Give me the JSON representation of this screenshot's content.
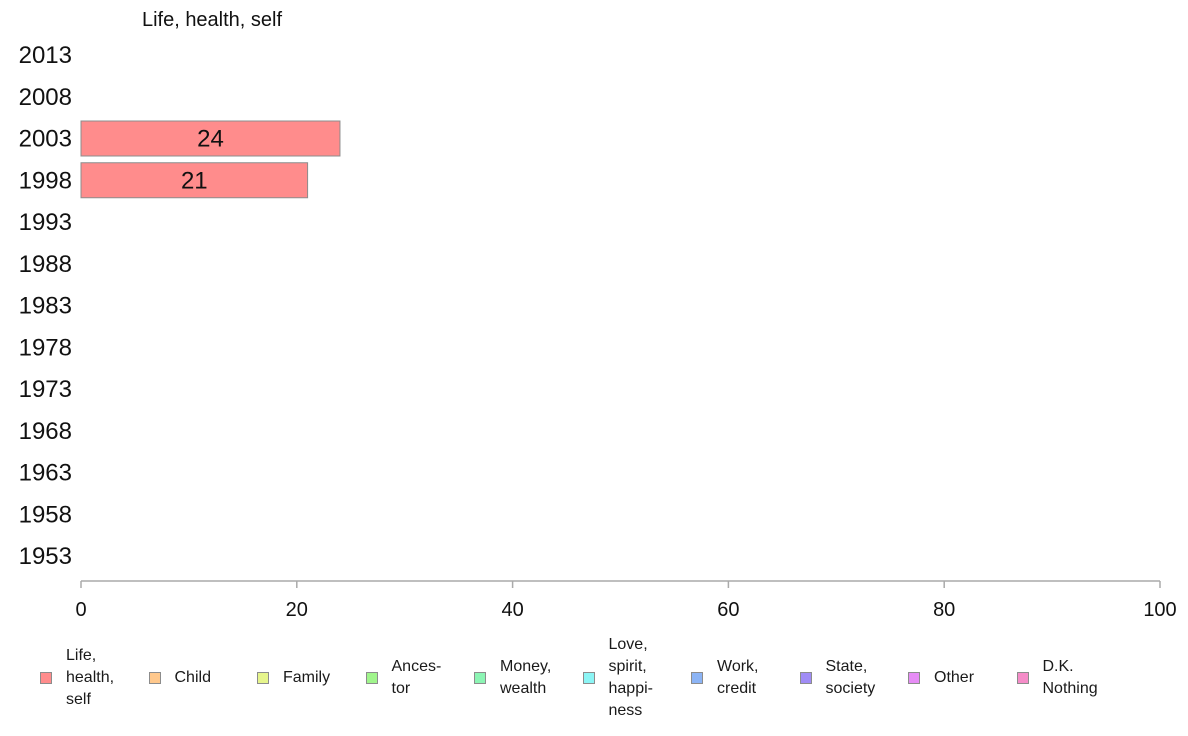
{
  "chart_data": {
    "type": "bar",
    "orientation": "horizontal",
    "title": "Life, health, self",
    "categories": [
      "2013",
      "2008",
      "2003",
      "1998",
      "1993",
      "1988",
      "1983",
      "1978",
      "1973",
      "1968",
      "1963",
      "1958",
      "1953"
    ],
    "series": [
      {
        "name": "Life, health, self",
        "color": "#ff8c8c",
        "values": [
          null,
          null,
          24,
          21,
          null,
          null,
          null,
          null,
          null,
          null,
          null,
          null,
          null
        ]
      }
    ],
    "xlim": [
      0,
      100
    ],
    "xticks": [
      "0",
      "20",
      "40",
      "60",
      "80",
      "100"
    ],
    "grid": false,
    "legend_position": "bottom"
  },
  "legend": [
    {
      "label": "Life,\nhealth,\nself",
      "color": "#ff8c8c",
      "icon": "square-swatch"
    },
    {
      "label": "Child",
      "color": "#ffc88c",
      "icon": "square-swatch"
    },
    {
      "label": "Family",
      "color": "#e6f58c",
      "icon": "square-swatch"
    },
    {
      "label": "Ances-\ntor",
      "color": "#a0f58c",
      "icon": "square-swatch"
    },
    {
      "label": "Money,\nwealth",
      "color": "#8cf5b4",
      "icon": "square-swatch"
    },
    {
      "label": "Love,\nspirit,\nhappi-\nness",
      "color": "#8cf5f5",
      "icon": "square-swatch"
    },
    {
      "label": "Work,\ncredit",
      "color": "#8cb4f5",
      "icon": "square-swatch"
    },
    {
      "label": "State,\nsociety",
      "color": "#a08cf5",
      "icon": "square-swatch"
    },
    {
      "label": "Other",
      "color": "#e68cf5",
      "icon": "square-swatch"
    },
    {
      "label": "D.K.\nNothing",
      "color": "#f58cc8",
      "icon": "square-swatch"
    }
  ],
  "colors": {
    "axis": "#aaaaaa",
    "bar_stroke": "#8c8c8c",
    "text": "#111111"
  }
}
